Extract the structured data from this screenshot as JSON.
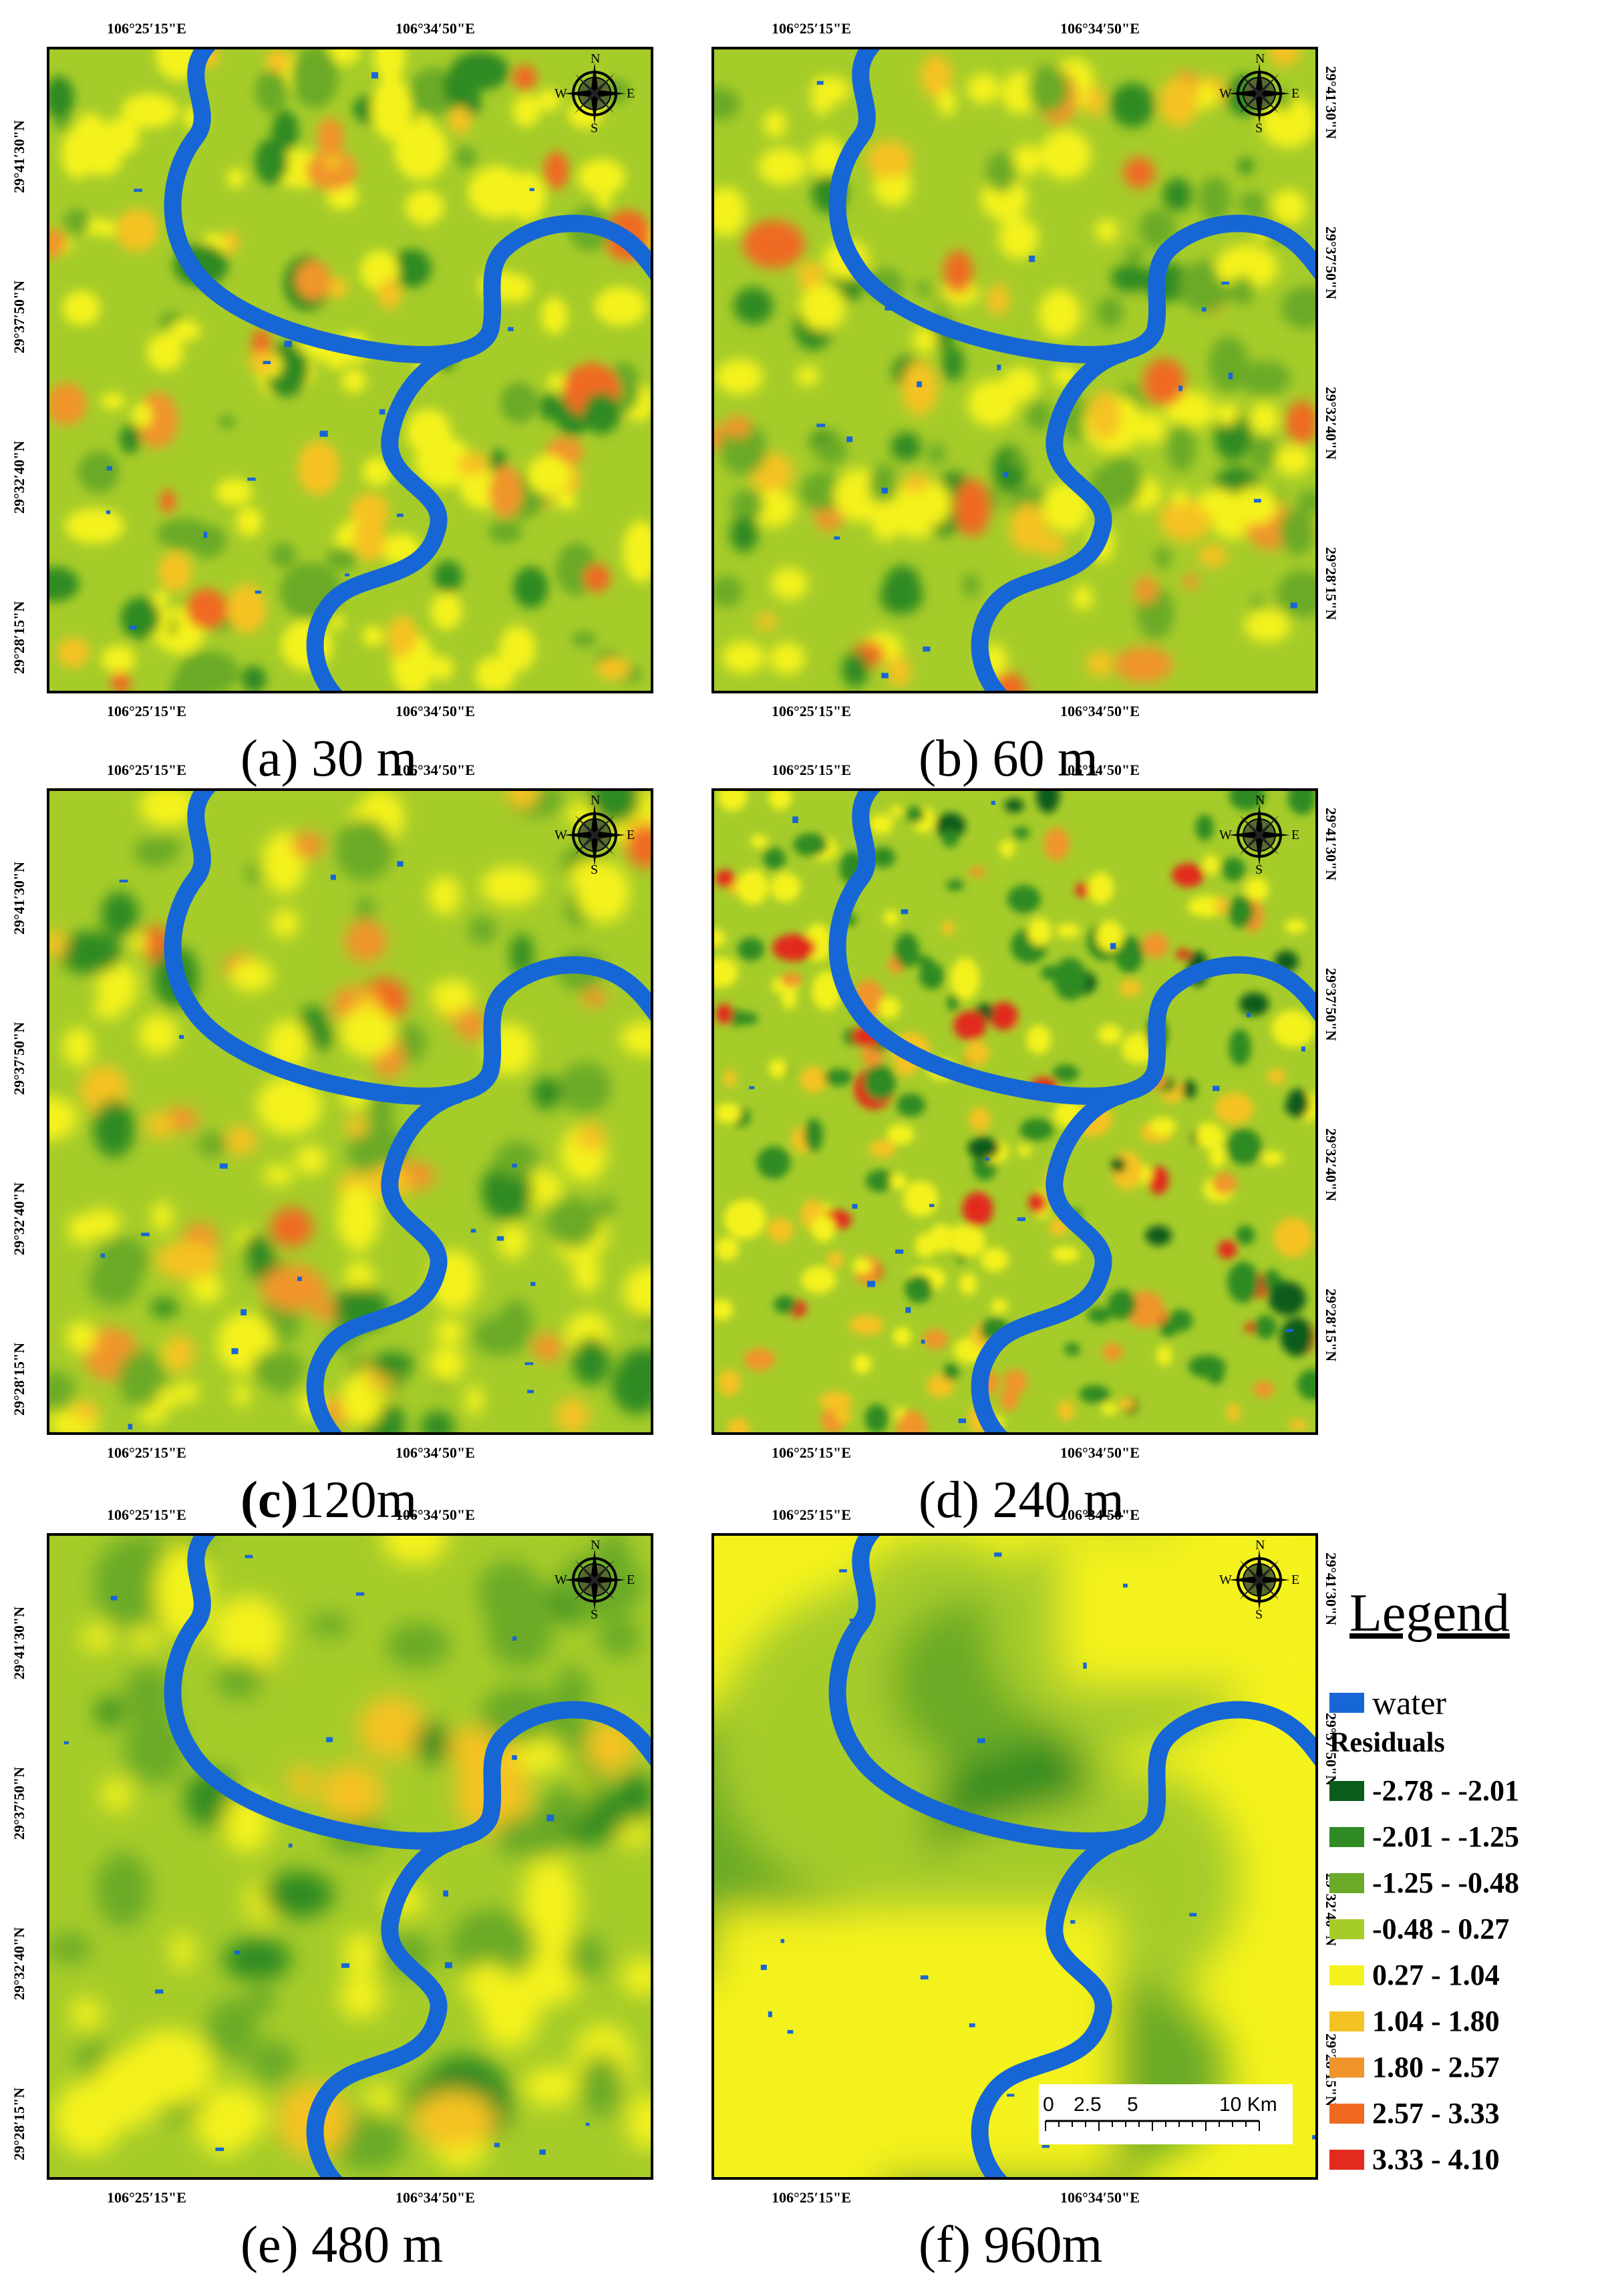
{
  "colors": {
    "water": "#1766d6",
    "classes": [
      "#0a5c1a",
      "#2f8a23",
      "#6aaa27",
      "#a6cc2a",
      "#f4f21c",
      "#f5c224",
      "#f0952c",
      "#ef6a20",
      "#e22a1e"
    ]
  },
  "coords": {
    "lon_left": "106°25′15\"E",
    "lon_right": "106°34′50\"E",
    "lat_1": "29°41′30\"N",
    "lat_2": "29°37′50\"N",
    "lat_3": "29°32′40\"N",
    "lat_4": "29°28′15\"N"
  },
  "panels": [
    {
      "letter": "(a)",
      "caption_rest": " 30 m",
      "bold_letter": false
    },
    {
      "letter": "(b)",
      "caption_rest": " 60 m",
      "bold_letter": false
    },
    {
      "letter": "(c)",
      "caption_rest": "120m",
      "bold_letter": true
    },
    {
      "letter": "(d)",
      "caption_rest": " 240 m",
      "bold_letter": false
    },
    {
      "letter": "(e)",
      "caption_rest": " 480 m",
      "bold_letter": false
    },
    {
      "letter": "(f)",
      "caption_rest": " 960m",
      "bold_letter": false
    }
  ],
  "compass": {
    "n": "N",
    "s": "S",
    "e": "E",
    "w": "W"
  },
  "scalebar": {
    "labels": [
      "0",
      "2.5",
      "5",
      "10 Km"
    ]
  },
  "legend": {
    "title": "Legend",
    "water_label": "water",
    "residuals_label": "Residuals",
    "classes": [
      "-2.78 - -2.01",
      "-2.01 - -1.25",
      "-1.25 - -0.48",
      "-0.48 - 0.27",
      "0.27 - 1.04",
      "1.04 - 1.80",
      "1.80 - 2.57",
      "2.57 - 3.33",
      "3.33 - 4.10"
    ]
  }
}
